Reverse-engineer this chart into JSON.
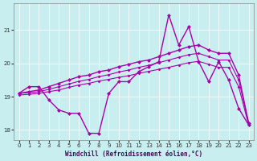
{
  "xlabel": "Windchill (Refroidissement éolien,°C)",
  "bg_color": "#c8eef0",
  "line_color": "#aa00aa",
  "ylim": [
    17.7,
    21.8
  ],
  "xlim": [
    -0.5,
    23.5
  ],
  "yticks": [
    18,
    19,
    20,
    21
  ],
  "xticks": [
    0,
    1,
    2,
    3,
    4,
    5,
    6,
    7,
    8,
    9,
    10,
    11,
    12,
    13,
    14,
    15,
    16,
    17,
    18,
    19,
    20,
    21,
    22,
    23
  ],
  "series": [
    {
      "x": [
        0,
        1,
        2,
        3,
        4,
        5,
        6,
        7,
        8,
        9,
        10,
        11,
        12,
        13,
        14,
        15,
        16,
        17,
        18,
        19,
        20,
        21,
        22,
        23
      ],
      "y": [
        19.1,
        19.3,
        19.3,
        18.9,
        18.6,
        18.5,
        18.5,
        17.9,
        17.9,
        19.1,
        19.45,
        19.45,
        19.75,
        19.9,
        20.05,
        21.45,
        20.55,
        21.1,
        20.05,
        19.45,
        20.05,
        19.5,
        18.65,
        18.15
      ],
      "marker": "D",
      "markersize": 2.5,
      "lw": 1.0
    },
    {
      "x": [
        0,
        1,
        2,
        3,
        4,
        5,
        6,
        7,
        8,
        9,
        10,
        11,
        12,
        13,
        14,
        15,
        16,
        17,
        18,
        19,
        20,
        21,
        22,
        23
      ],
      "y": [
        19.1,
        19.15,
        19.2,
        19.3,
        19.4,
        19.5,
        19.6,
        19.65,
        19.75,
        19.8,
        19.9,
        19.97,
        20.05,
        20.1,
        20.2,
        20.3,
        20.4,
        20.5,
        20.55,
        20.4,
        20.3,
        20.3,
        19.65,
        18.2
      ],
      "marker": "D",
      "markersize": 2.5,
      "lw": 1.0
    },
    {
      "x": [
        0,
        1,
        2,
        3,
        4,
        5,
        6,
        7,
        8,
        9,
        10,
        11,
        12,
        13,
        14,
        15,
        16,
        17,
        18,
        19,
        20,
        21,
        22,
        23
      ],
      "y": [
        19.1,
        19.12,
        19.15,
        19.22,
        19.3,
        19.38,
        19.46,
        19.52,
        19.6,
        19.66,
        19.74,
        19.8,
        19.88,
        19.94,
        20.02,
        20.1,
        20.18,
        20.26,
        20.3,
        20.2,
        20.1,
        20.1,
        19.5,
        18.2
      ],
      "marker": "D",
      "markersize": 2.0,
      "lw": 0.8
    },
    {
      "x": [
        0,
        1,
        2,
        3,
        4,
        5,
        6,
        7,
        8,
        9,
        10,
        11,
        12,
        13,
        14,
        15,
        16,
        17,
        18,
        19,
        20,
        21,
        22,
        23
      ],
      "y": [
        19.05,
        19.07,
        19.1,
        19.15,
        19.2,
        19.28,
        19.35,
        19.4,
        19.47,
        19.52,
        19.58,
        19.63,
        19.7,
        19.76,
        19.82,
        19.88,
        19.95,
        20.02,
        20.06,
        19.97,
        19.88,
        19.88,
        19.3,
        18.15
      ],
      "marker": "D",
      "markersize": 2.0,
      "lw": 0.8
    }
  ]
}
